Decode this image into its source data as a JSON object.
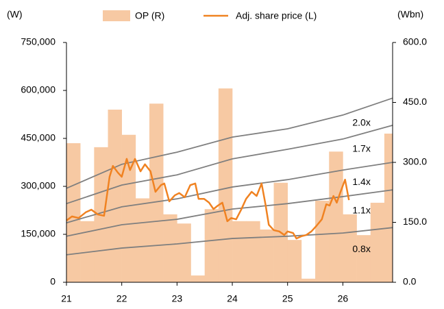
{
  "chart_data": {
    "type": "line",
    "y_label": "(W)",
    "y2_label": "(Wbn)",
    "xlim": [
      21,
      26.9
    ],
    "xticks": [
      21,
      22,
      23,
      24,
      25,
      26
    ],
    "ylim": [
      0,
      750000
    ],
    "yticks": [
      0,
      {
        "value": 150000,
        "label": "150,000"
      },
      {
        "value": 300000,
        "label": "300,000"
      },
      {
        "value": 450000,
        "label": "450,000"
      },
      {
        "value": 600000,
        "label": "600,000"
      },
      {
        "value": 750000,
        "label": "750,000"
      }
    ],
    "y2lim": [
      0,
      600
    ],
    "y2ticks": [
      {
        "value": 0,
        "label": "0.0"
      },
      {
        "value": 150,
        "label": "150.0"
      },
      {
        "value": 300,
        "label": "300.0"
      },
      {
        "value": 450,
        "label": "450.0"
      },
      {
        "value": 600,
        "label": "600.0"
      }
    ],
    "series": [
      {
        "name": "OP (R)",
        "type": "area",
        "axis": "y2",
        "color": "#f7c9a3",
        "x": [
          21.0,
          21.25,
          21.5,
          21.75,
          22.0,
          22.25,
          22.5,
          22.75,
          23.0,
          23.25,
          23.5,
          23.75,
          24.0,
          24.25,
          24.5,
          24.75,
          25.0,
          25.25,
          25.5,
          25.75,
          26.0,
          26.25,
          26.5,
          26.75
        ],
        "values": [
          348,
          153,
          338,
          432,
          369,
          210,
          447,
          170,
          147,
          17,
          183,
          485,
          153,
          153,
          132,
          249,
          106,
          9,
          204,
          327,
          170,
          118,
          199,
          372
        ]
      },
      {
        "name": "Adj. share price (L)",
        "type": "line",
        "color": "#f08221",
        "x": [
          21.0,
          21.1,
          21.22,
          21.35,
          21.45,
          21.57,
          21.68,
          21.78,
          21.84,
          21.93,
          22.0,
          22.09,
          22.15,
          22.24,
          22.34,
          22.42,
          22.52,
          22.61,
          22.71,
          22.77,
          22.86,
          22.96,
          23.04,
          23.14,
          23.24,
          23.33,
          23.39,
          23.49,
          23.58,
          23.66,
          23.74,
          23.82,
          23.91,
          23.98,
          24.07,
          24.16,
          24.25,
          24.35,
          24.44,
          24.53,
          24.6,
          24.66,
          24.75,
          24.85,
          24.94,
          25.0,
          25.1,
          25.16,
          25.25,
          25.34,
          25.43,
          25.52,
          25.62,
          25.7,
          25.76,
          25.83,
          25.89,
          25.95,
          26.04,
          26.11
        ],
        "values": [
          193000,
          206000,
          201000,
          219000,
          227000,
          212000,
          208000,
          330000,
          364000,
          343000,
          330000,
          386000,
          351000,
          386000,
          347000,
          369000,
          347000,
          283000,
          304000,
          309000,
          253000,
          272000,
          279000,
          266000,
          304000,
          309000,
          261000,
          261000,
          249000,
          229000,
          240000,
          249000,
          191000,
          201000,
          197000,
          227000,
          261000,
          283000,
          270000,
          309000,
          244000,
          180000,
          163000,
          159000,
          148000,
          159000,
          154000,
          137000,
          144000,
          148000,
          159000,
          176000,
          197000,
          244000,
          240000,
          270000,
          249000,
          279000,
          321000,
          257000
        ]
      }
    ],
    "bands": [
      {
        "label": "2.0x",
        "color": "#7f7f7f",
        "x": [
          21,
          22,
          23,
          24,
          25,
          26,
          26.9
        ],
        "values": [
          294000,
          369000,
          407000,
          454000,
          480000,
          523000,
          576000
        ]
      },
      {
        "label": "1.7x",
        "color": "#7f7f7f",
        "x": [
          21,
          22,
          23,
          24,
          25,
          26,
          26.9
        ],
        "values": [
          246000,
          304000,
          336000,
          386000,
          416000,
          448000,
          491000
        ]
      },
      {
        "label": "1.4x",
        "color": "#7f7f7f",
        "x": [
          21,
          22,
          23,
          24,
          25,
          26,
          26.9
        ],
        "values": [
          186000,
          236000,
          261000,
          298000,
          321000,
          351000,
          375000
        ]
      },
      {
        "label": "1.1x",
        "color": "#7f7f7f",
        "x": [
          21,
          22,
          23,
          24,
          25,
          26,
          26.9
        ],
        "values": [
          144000,
          180000,
          197000,
          229000,
          246000,
          268000,
          289000
        ]
      },
      {
        "label": "0.8x",
        "color": "#7f7f7f",
        "x": [
          21,
          22,
          23,
          24,
          25,
          26,
          26.9
        ],
        "values": [
          86000,
          107000,
          120000,
          137000,
          144000,
          154000,
          171000
        ]
      }
    ]
  }
}
